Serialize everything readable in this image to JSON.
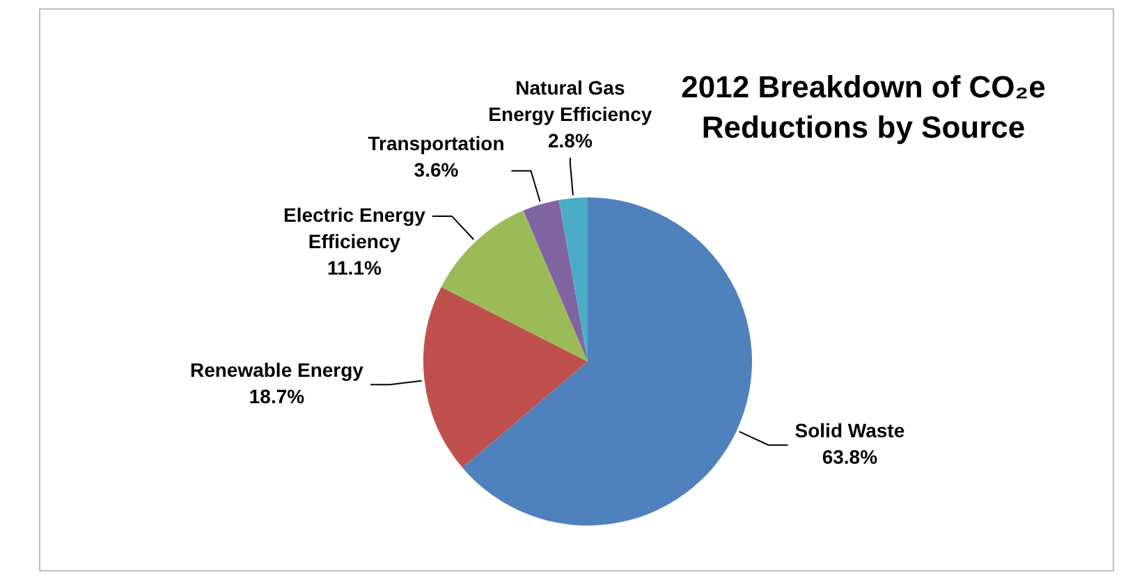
{
  "chart_data": {
    "type": "pie",
    "title": "2012 Breakdown of CO₂e Reductions by Source",
    "categories": [
      "Solid Waste",
      "Renewable Energy",
      "Electric Energy Efficiency",
      "Transportation",
      "Natural Gas Energy Efficiency"
    ],
    "values": [
      63.8,
      18.7,
      11.1,
      3.6,
      2.8
    ],
    "value_labels": [
      "63.8%",
      "18.7%",
      "11.1%",
      "3.6%",
      "2.8%"
    ],
    "colors": [
      "#4f81bd",
      "#c0504d",
      "#9bbb59",
      "#8064a2",
      "#4bacc6"
    ],
    "legend": false
  }
}
